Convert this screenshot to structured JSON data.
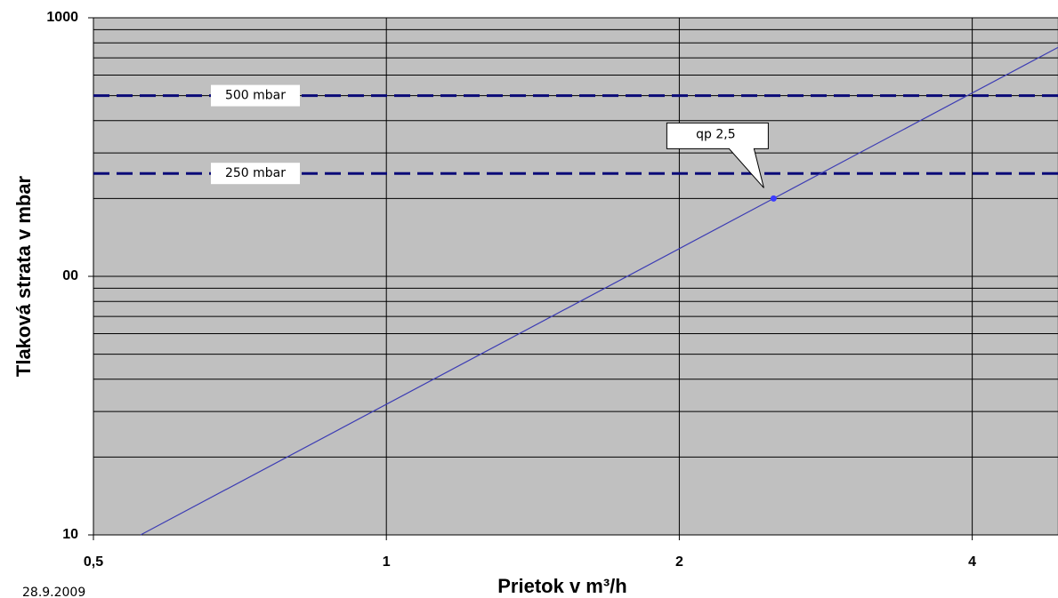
{
  "chart_data": {
    "type": "line",
    "x_label": "Prietok v m³/h",
    "y_label": "Tlaková strata v mbar",
    "footnote": "28.9.2009",
    "x": [
      0.559,
      2.5,
      4.9
    ],
    "series": [
      {
        "color": "#3c3cb4",
        "values": [
          10,
          200,
          768
        ]
      }
    ],
    "log_x": true,
    "log_y": true,
    "xlim": [
      0.5,
      4.9
    ],
    "ylim": [
      10,
      1000
    ],
    "xticks": [
      {
        "value": 0.5,
        "label": "0,5"
      },
      1,
      2,
      4
    ],
    "yticks": [
      10,
      {
        "value": 100,
        "label": "00"
      },
      1000
    ],
    "yminorticks": [
      20,
      30,
      40,
      50,
      60,
      70,
      80,
      90,
      200,
      300,
      400,
      500,
      600,
      700,
      800,
      900
    ],
    "grid": true,
    "background": "#c0c0c0",
    "hlines": [
      {
        "value": 500,
        "label": "500 mbar",
        "color": "#0a0a78"
      },
      {
        "value": 250,
        "label": "250 mbar",
        "color": "#0a0a78"
      }
    ],
    "annotations": [
      {
        "text": "qp 2,5",
        "x": 2.5,
        "y": 200
      }
    ]
  }
}
